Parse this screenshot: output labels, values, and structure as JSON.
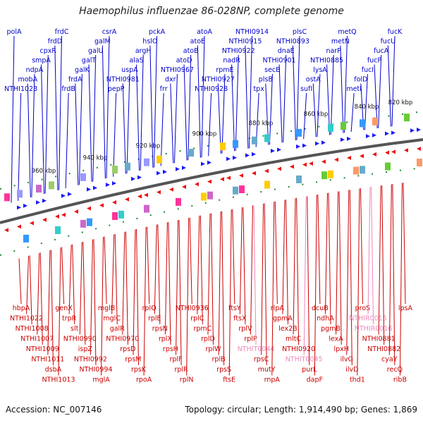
{
  "title": "Haemophilus influenzae 86-028NP, complete genome",
  "accession": "Accession: NC_007146",
  "summary": "Topology: circular; Length: 1,914,490 bp; Genes: 1,869",
  "colors": {
    "forward": "#0000cc",
    "reverse": "#cc0000",
    "rna": "#ee88bb",
    "tick": "#228833",
    "backbone": "#555555"
  },
  "scale_labels": [
    "960 kbp",
    "940 kbp",
    "920 kbp",
    "900 kbp",
    "880 kbp",
    "860 kbp",
    "840 kbp",
    "820 kbp"
  ],
  "top_genes": [
    "fucK",
    "fucU",
    "fucA",
    "fucP",
    "fucI",
    "folD",
    "metI",
    "metQ",
    "metN",
    "narP",
    "NTHI0885",
    "lysA",
    "ostA",
    "sufI",
    "plsC",
    "NTHI0893",
    "dnaE",
    "NTHI0901",
    "secB",
    "plsB",
    "tpx",
    "NTHI0914",
    "NTHI0915",
    "NTHI0922",
    "nadR",
    "rpmE",
    "NTHI0927",
    "NTHI0928",
    "atoA",
    "atoE",
    "atoB",
    "atoD",
    "NTHI0967",
    "dxr",
    "frr",
    "pckA",
    "hslO",
    "argH",
    "alaS",
    "uspA",
    "NTHI0981",
    "pepP",
    "csrA",
    "galM",
    "galU",
    "galT",
    "galK",
    "frdA",
    "frdB",
    "frdC",
    "frdD",
    "cpxR",
    "smpA",
    "ndpA",
    "mobA",
    "NTHI1023",
    "polA"
  ],
  "bottom_genes": [
    "hbpA",
    "NTHI1022",
    "NTHI1008",
    "NTHI1007",
    "NTHI1009",
    "NTHI1011",
    "dsbA",
    "NTHI1013",
    "genX",
    "trpR",
    "slt",
    "NTHI0990",
    "ispZ",
    "NTHI0992",
    "NTHI0994",
    "mglA",
    "mglB",
    "mglC",
    "galR",
    "NTHI0970",
    "rpsD",
    "rpsM",
    "rpsK",
    "rpoA",
    "rplQ",
    "rplE",
    "rpsN",
    "rplX",
    "rpsH",
    "rplF",
    "rplR",
    "rplN",
    "NTHI0936",
    "rplC",
    "rpmC",
    "rplD",
    "rplW",
    "rplB",
    "rpsS",
    "ftsE",
    "ftsY",
    "ftsX",
    "rplV",
    "rplP",
    "NTHIT0044",
    "rpsC",
    "mutY",
    "rnpA",
    "rlpA",
    "gpmA",
    "lex2B",
    "mltC",
    "NTHI0920",
    "NTHIT0045",
    "purL",
    "dapF",
    "dcuB",
    "ndhA",
    "pgmB",
    "lexA",
    "lpxH",
    "ilvG",
    "ilvD",
    "thd1",
    "proS",
    "NTHIR0015",
    "NTHIR0016",
    "NTHI0881",
    "NTHI0882",
    "cyaY",
    "recQ",
    "ribB",
    "lpsA"
  ]
}
